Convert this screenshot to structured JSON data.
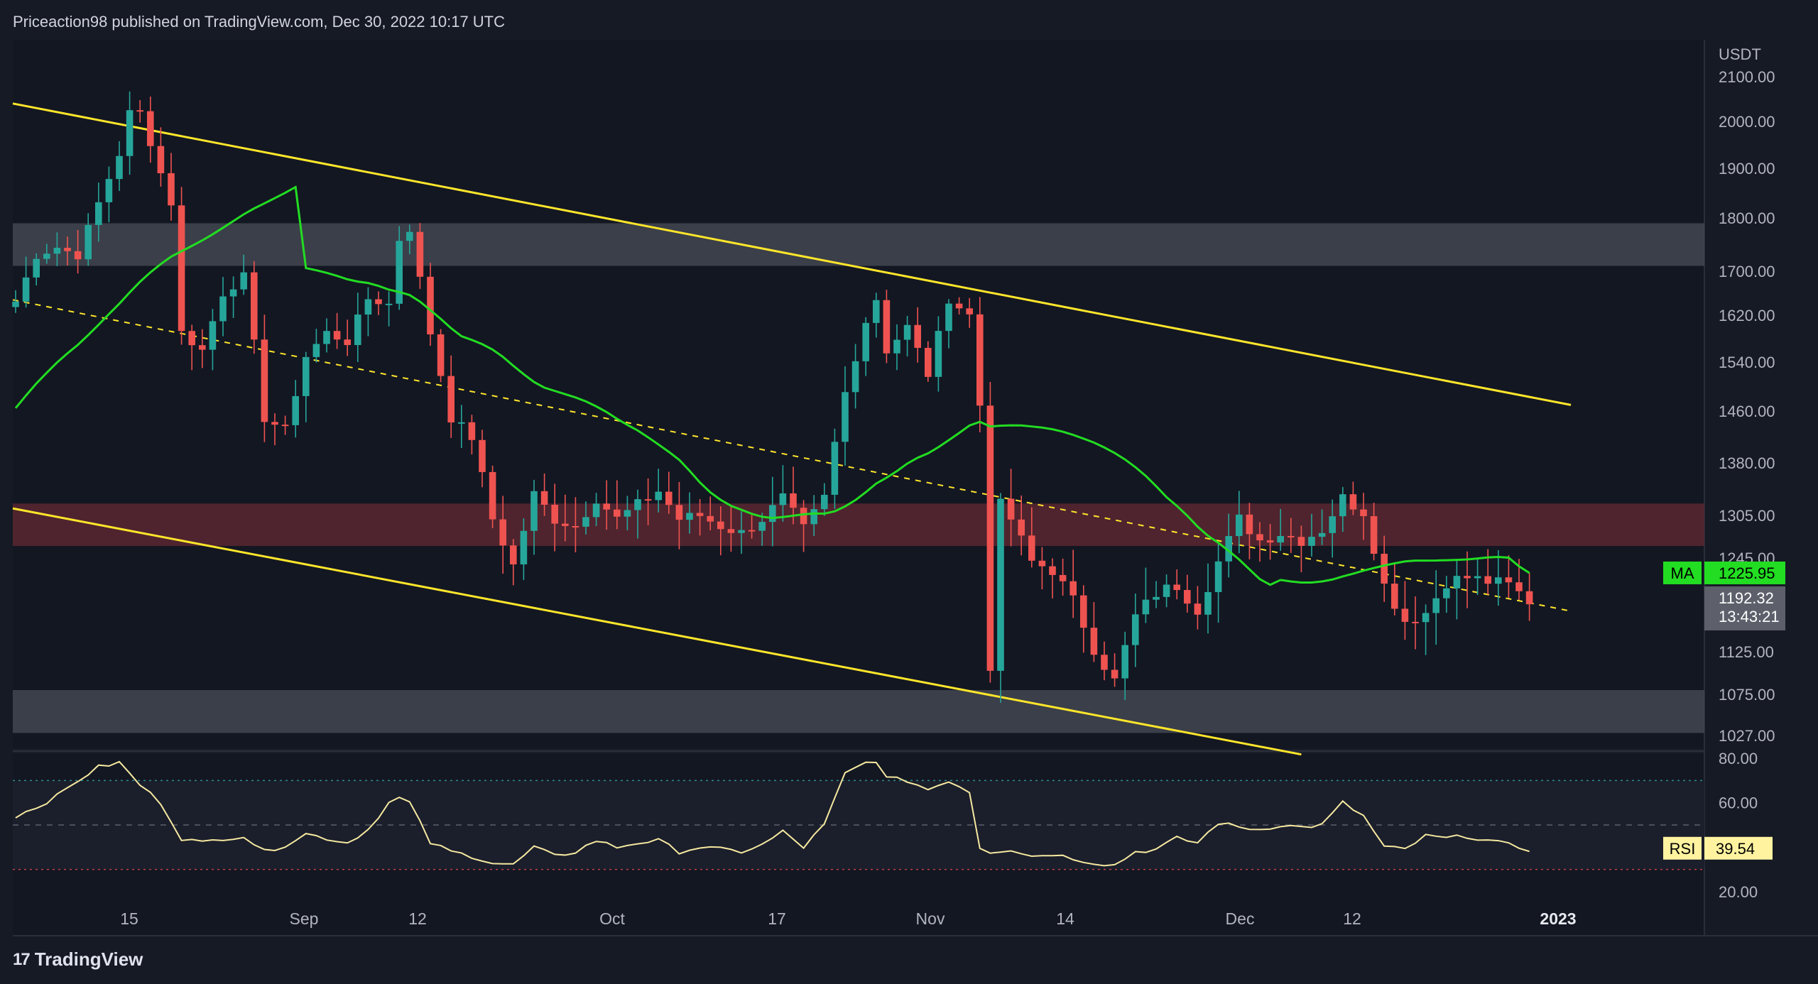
{
  "header": {
    "text": "Priceaction98 published on TradingView.com, Dec 30, 2022 10:17 UTC"
  },
  "footer": {
    "brand": "TradingView",
    "logo": "tradingview-logo-icon"
  },
  "colors": {
    "bg": "#161a25",
    "up": "#26a69a",
    "down": "#ef5350",
    "ma": "#22dd22",
    "trend": "#ffe62b",
    "rsi": "#f5e9a0",
    "grey_zone": "#4a4d57",
    "red_zone": "#5a2730",
    "axis_text": "#b2b5be"
  },
  "chart_data": {
    "type": "candlestick",
    "symbol_currency": "USDT",
    "timeframe": "1D",
    "price_axis": {
      "label": "USDT",
      "ticks": [
        "2100.00",
        "2000.00",
        "1900.00",
        "1800.00",
        "1700.00",
        "1620.00",
        "1540.00",
        "1460.00",
        "1380.00",
        "1305.00",
        "1245.00",
        "1125.00",
        "1075.00",
        "1027.00"
      ],
      "ylim": [
        1000,
        2130
      ]
    },
    "time_axis": {
      "ticks": [
        {
          "label": "15",
          "bold": false
        },
        {
          "label": "Sep",
          "bold": false
        },
        {
          "label": "12",
          "bold": false
        },
        {
          "label": "Oct",
          "bold": false
        },
        {
          "label": "17",
          "bold": false
        },
        {
          "label": "Nov",
          "bold": false
        },
        {
          "label": "14",
          "bold": false
        },
        {
          "label": "Dec",
          "bold": false
        },
        {
          "label": "12",
          "bold": false
        },
        {
          "label": "2023",
          "bold": true
        }
      ]
    },
    "zones": [
      {
        "name": "resistance-zone-grey",
        "low": 1710,
        "high": 1790,
        "color": "grey"
      },
      {
        "name": "resistance-zone-red",
        "low": 1262,
        "high": 1322,
        "color": "red"
      },
      {
        "name": "support-zone-grey",
        "low": 1030,
        "high": 1080,
        "color": "grey"
      }
    ],
    "trendlines": [
      {
        "name": "upper-channel-line",
        "from": {
          "day": 0,
          "price": 2040
        },
        "to": {
          "day": 150,
          "price": 1470
        }
      },
      {
        "name": "lower-channel-line",
        "from": {
          "day": 0,
          "price": 1315
        },
        "to": {
          "day": 124,
          "price": 1003
        }
      },
      {
        "name": "mid-channel-dashed-line",
        "from": {
          "day": 0,
          "price": 1648
        },
        "to": {
          "day": 150,
          "price": 1177
        }
      }
    ],
    "ma": {
      "label": "MA",
      "value": "1225.95",
      "period": 50
    },
    "last_price": {
      "value": "1192.32",
      "countdown": "13:43:21"
    },
    "rsi": {
      "label": "RSI",
      "value": "39.54",
      "ticks": [
        "80.00",
        "60.00",
        "20.00"
      ],
      "levels": {
        "upper": 70,
        "middle": 50,
        "lower": 30
      }
    },
    "candle_anchors": [
      [
        0,
        1645
      ],
      [
        2,
        1730
      ],
      [
        4,
        1745
      ],
      [
        6,
        1730
      ],
      [
        8,
        1830
      ],
      [
        10,
        1930
      ],
      [
        11,
        2020
      ],
      [
        12,
        2020
      ],
      [
        14,
        1890
      ],
      [
        15,
        1830
      ],
      [
        16,
        1590
      ],
      [
        18,
        1560
      ],
      [
        20,
        1660
      ],
      [
        22,
        1690
      ],
      [
        24,
        1450
      ],
      [
        26,
        1430
      ],
      [
        28,
        1550
      ],
      [
        30,
        1590
      ],
      [
        32,
        1575
      ],
      [
        34,
        1650
      ],
      [
        36,
        1640
      ],
      [
        37,
        1760
      ],
      [
        38,
        1780
      ],
      [
        40,
        1590
      ],
      [
        42,
        1450
      ],
      [
        44,
        1420
      ],
      [
        46,
        1300
      ],
      [
        48,
        1235
      ],
      [
        50,
        1335
      ],
      [
        52,
        1300
      ],
      [
        54,
        1290
      ],
      [
        56,
        1330
      ],
      [
        58,
        1300
      ],
      [
        60,
        1320
      ],
      [
        62,
        1340
      ],
      [
        64,
        1300
      ],
      [
        66,
        1305
      ],
      [
        68,
        1290
      ],
      [
        70,
        1280
      ],
      [
        72,
        1300
      ],
      [
        74,
        1330
      ],
      [
        76,
        1285
      ],
      [
        78,
        1330
      ],
      [
        80,
        1490
      ],
      [
        82,
        1610
      ],
      [
        83,
        1650
      ],
      [
        84,
        1560
      ],
      [
        86,
        1600
      ],
      [
        88,
        1520
      ],
      [
        90,
        1650
      ],
      [
        92,
        1620
      ],
      [
        93,
        1470
      ],
      [
        94,
        1110
      ],
      [
        95,
        1320
      ],
      [
        96,
        1300
      ],
      [
        98,
        1240
      ],
      [
        100,
        1230
      ],
      [
        102,
        1190
      ],
      [
        104,
        1130
      ],
      [
        106,
        1090
      ],
      [
        108,
        1170
      ],
      [
        110,
        1200
      ],
      [
        112,
        1210
      ],
      [
        114,
        1180
      ],
      [
        116,
        1240
      ],
      [
        118,
        1300
      ],
      [
        120,
        1270
      ],
      [
        122,
        1280
      ],
      [
        124,
        1270
      ],
      [
        126,
        1285
      ],
      [
        128,
        1330
      ],
      [
        130,
        1310
      ],
      [
        132,
        1210
      ],
      [
        134,
        1165
      ],
      [
        136,
        1175
      ],
      [
        138,
        1215
      ],
      [
        140,
        1220
      ],
      [
        142,
        1215
      ],
      [
        144,
        1210
      ],
      [
        146,
        1190
      ]
    ],
    "rsi_anchors": [
      [
        0,
        54
      ],
      [
        2,
        58
      ],
      [
        4,
        63
      ],
      [
        6,
        70
      ],
      [
        8,
        76
      ],
      [
        10,
        78
      ],
      [
        12,
        68
      ],
      [
        14,
        60
      ],
      [
        16,
        44
      ],
      [
        18,
        42
      ],
      [
        20,
        44
      ],
      [
        22,
        45
      ],
      [
        24,
        38
      ],
      [
        26,
        41
      ],
      [
        28,
        46
      ],
      [
        30,
        44
      ],
      [
        32,
        42
      ],
      [
        34,
        48
      ],
      [
        36,
        60
      ],
      [
        37,
        62
      ],
      [
        38,
        60
      ],
      [
        40,
        42
      ],
      [
        42,
        38
      ],
      [
        44,
        36
      ],
      [
        46,
        33
      ],
      [
        48,
        32
      ],
      [
        50,
        40
      ],
      [
        52,
        36
      ],
      [
        54,
        38
      ],
      [
        56,
        43
      ],
      [
        58,
        40
      ],
      [
        60,
        42
      ],
      [
        62,
        43
      ],
      [
        64,
        38
      ],
      [
        66,
        40
      ],
      [
        68,
        39
      ],
      [
        70,
        38
      ],
      [
        72,
        41
      ],
      [
        74,
        47
      ],
      [
        76,
        40
      ],
      [
        78,
        50
      ],
      [
        80,
        73
      ],
      [
        82,
        78
      ],
      [
        83,
        79
      ],
      [
        84,
        71
      ],
      [
        86,
        70
      ],
      [
        88,
        66
      ],
      [
        90,
        70
      ],
      [
        92,
        65
      ],
      [
        93,
        40
      ],
      [
        94,
        38
      ],
      [
        96,
        39
      ],
      [
        98,
        36
      ],
      [
        100,
        37
      ],
      [
        102,
        35
      ],
      [
        104,
        33
      ],
      [
        106,
        32
      ],
      [
        108,
        38
      ],
      [
        110,
        39
      ],
      [
        112,
        44
      ],
      [
        114,
        42
      ],
      [
        116,
        51
      ],
      [
        118,
        49
      ],
      [
        120,
        48
      ],
      [
        122,
        50
      ],
      [
        124,
        49
      ],
      [
        126,
        50
      ],
      [
        128,
        60
      ],
      [
        130,
        54
      ],
      [
        132,
        40
      ],
      [
        134,
        39
      ],
      [
        136,
        45
      ],
      [
        138,
        44
      ],
      [
        140,
        45
      ],
      [
        142,
        43
      ],
      [
        144,
        41
      ],
      [
        146,
        39
      ]
    ]
  }
}
